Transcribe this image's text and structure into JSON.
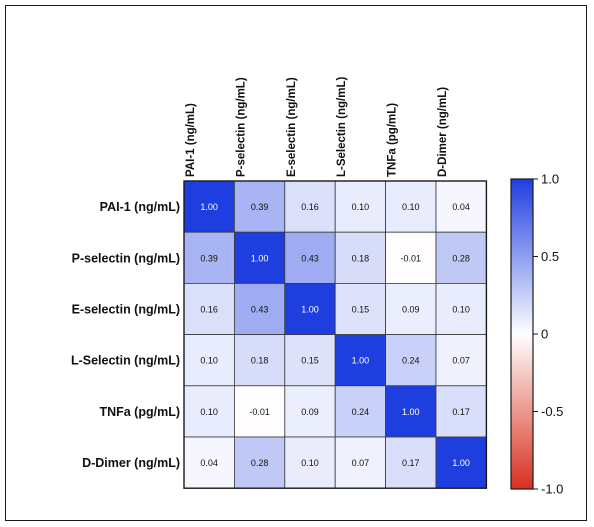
{
  "chart_data": {
    "type": "heatmap",
    "title": "",
    "row_labels": [
      "PAI-1 (ng/mL)",
      "P-selectin (ng/mL)",
      "E-selectin (ng/mL)",
      "L-Selectin (ng/mL)",
      "TNFa (pg/mL)",
      "D-Dimer (ng/mL)"
    ],
    "col_labels": [
      "PAI-1 (ng/mL)",
      "P-selectin (ng/mL)",
      "E-selectin (ng/mL)",
      "L-Selectin (ng/mL)",
      "TNFa (pg/mL)",
      "D-Dimer (ng/mL)"
    ],
    "values": [
      [
        1.0,
        0.39,
        0.16,
        0.1,
        0.1,
        0.04
      ],
      [
        0.39,
        1.0,
        0.43,
        0.18,
        -0.01,
        0.28
      ],
      [
        0.16,
        0.43,
        1.0,
        0.15,
        0.09,
        0.1
      ],
      [
        0.1,
        0.18,
        0.15,
        1.0,
        0.24,
        0.07
      ],
      [
        0.1,
        -0.01,
        0.09,
        0.24,
        1.0,
        0.17
      ],
      [
        0.04,
        0.28,
        0.1,
        0.07,
        0.17,
        1.0
      ]
    ],
    "value_labels": [
      [
        "1.00",
        "0.39",
        "0.16",
        "0.10",
        "0.10",
        "0.04"
      ],
      [
        "0.39",
        "1.00",
        "0.43",
        "0.18",
        "-0.01",
        "0.28"
      ],
      [
        "0.16",
        "0.43",
        "1.00",
        "0.15",
        "0.09",
        "0.10"
      ],
      [
        "0.10",
        "0.18",
        "0.15",
        "1.00",
        "0.24",
        "0.07"
      ],
      [
        "0.10",
        "-0.01",
        "0.09",
        "0.24",
        "1.00",
        "0.17"
      ],
      [
        "0.04",
        "0.28",
        "0.10",
        "0.07",
        "0.17",
        "1.00"
      ]
    ],
    "colorbar": {
      "range": [
        -1.0,
        1.0
      ],
      "ticks": [
        1.0,
        0.5,
        0,
        -0.5,
        -1.0
      ],
      "tick_labels": [
        "1.0",
        "0.5",
        "0",
        "-0.5",
        "-1.0"
      ],
      "color_max": "#1f3ee0",
      "color_mid": "#ffffff",
      "color_min": "#d7301f"
    },
    "legend_position": "right"
  }
}
